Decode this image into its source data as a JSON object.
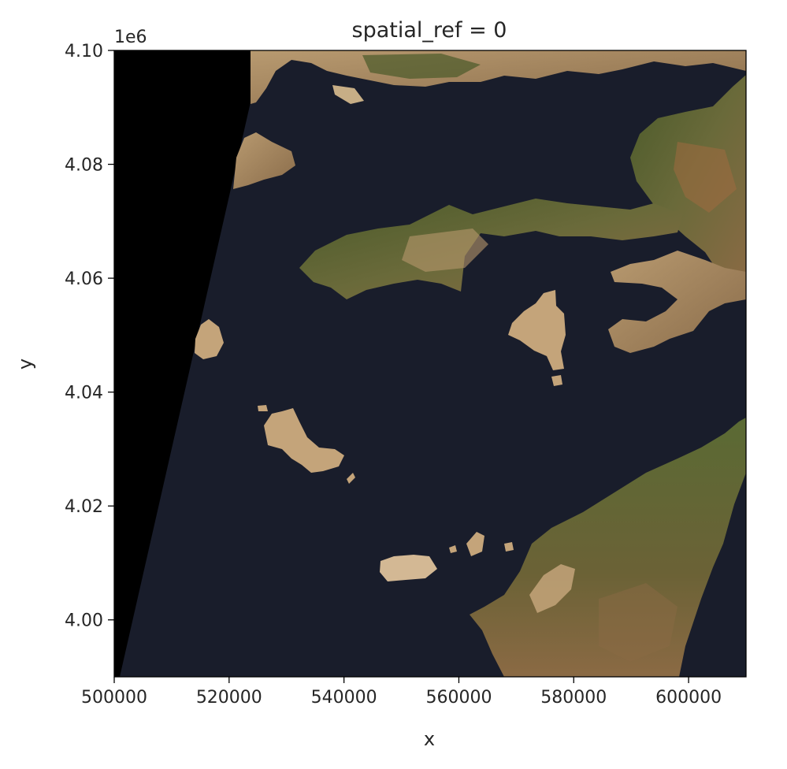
{
  "chart_data": {
    "type": "image",
    "title": "spatial_ref = 0",
    "xlabel": "x",
    "ylabel": "y",
    "xlim": [
      500000,
      610000
    ],
    "ylim": [
      3990000,
      4100000
    ],
    "x_ticks": [
      500000,
      520000,
      540000,
      560000,
      580000,
      600000
    ],
    "x_tick_labels": [
      "500000",
      "520000",
      "540000",
      "560000",
      "580000",
      "600000"
    ],
    "y_ticks": [
      4000000,
      4020000,
      4040000,
      4060000,
      4080000,
      4100000
    ],
    "y_tick_labels": [
      "4.00",
      "4.02",
      "4.04",
      "4.06",
      "4.08",
      "4.10"
    ],
    "y_offset_label": "1e6",
    "colors": {
      "sea": "#191d2b",
      "nodata": "#000000",
      "land_green": "#3f4a26",
      "land_tan": "#a88a62",
      "land_light": "#d3b894"
    }
  }
}
